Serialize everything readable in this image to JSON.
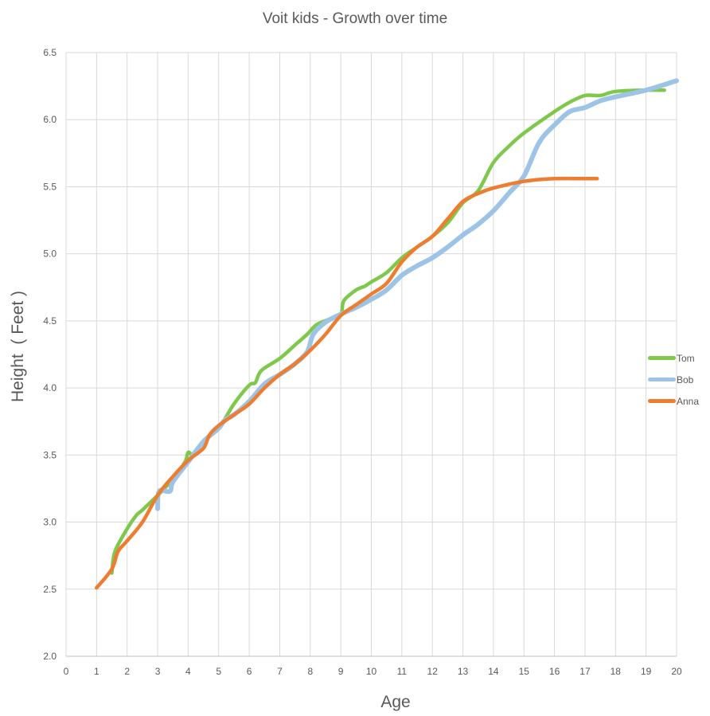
{
  "chart_data": {
    "type": "line",
    "title": "Voit kids - Growth over time",
    "xlabel": "Age",
    "ylabel": "Height  ( Feet )",
    "xlim": [
      0,
      20
    ],
    "ylim": [
      2.0,
      6.5
    ],
    "x_ticks": [
      "0",
      "1",
      "2",
      "3",
      "4",
      "5",
      "6",
      "7",
      "8",
      "9",
      "10",
      "11",
      "12",
      "13",
      "14",
      "15",
      "16",
      "17",
      "18",
      "19",
      "20"
    ],
    "y_ticks": [
      "2.0",
      "2.5",
      "3.0",
      "3.5",
      "4.0",
      "4.5",
      "5.0",
      "5.5",
      "6.0",
      "6.5"
    ],
    "grid": true,
    "legend_position": "right",
    "series": [
      {
        "name": "Tom",
        "color": "#7ec94c",
        "points": [
          [
            1.5,
            2.62
          ],
          [
            1.6,
            2.78
          ],
          [
            2.0,
            2.95
          ],
          [
            2.3,
            3.05
          ],
          [
            2.5,
            3.09
          ],
          [
            3.0,
            3.2
          ],
          [
            3.5,
            3.32
          ],
          [
            3.9,
            3.45
          ],
          [
            4.0,
            3.52
          ],
          [
            4.2,
            3.5
          ],
          [
            4.5,
            3.6
          ],
          [
            5.0,
            3.7
          ],
          [
            5.5,
            3.88
          ],
          [
            6.0,
            4.02
          ],
          [
            6.2,
            4.04
          ],
          [
            6.4,
            4.13
          ],
          [
            7.0,
            4.22
          ],
          [
            7.5,
            4.32
          ],
          [
            7.9,
            4.4
          ],
          [
            8.2,
            4.47
          ],
          [
            8.6,
            4.51
          ],
          [
            9.0,
            4.55
          ],
          [
            9.1,
            4.65
          ],
          [
            9.5,
            4.73
          ],
          [
            9.8,
            4.76
          ],
          [
            10.0,
            4.79
          ],
          [
            10.5,
            4.86
          ],
          [
            11.0,
            4.97
          ],
          [
            11.5,
            5.05
          ],
          [
            12.0,
            5.13
          ],
          [
            12.5,
            5.23
          ],
          [
            13.0,
            5.38
          ],
          [
            13.5,
            5.47
          ],
          [
            14.0,
            5.68
          ],
          [
            14.5,
            5.8
          ],
          [
            15.0,
            5.9
          ],
          [
            16.0,
            6.06
          ],
          [
            16.5,
            6.13
          ],
          [
            17.0,
            6.18
          ],
          [
            17.5,
            6.18
          ],
          [
            18.0,
            6.21
          ],
          [
            19.0,
            6.22
          ],
          [
            19.6,
            6.22
          ]
        ]
      },
      {
        "name": "Bob",
        "color": "#9dc3e6",
        "points": [
          [
            3.0,
            3.1
          ],
          [
            3.05,
            3.23
          ],
          [
            3.4,
            3.23
          ],
          [
            3.5,
            3.3
          ],
          [
            4.0,
            3.45
          ],
          [
            4.5,
            3.6
          ],
          [
            5.0,
            3.7
          ],
          [
            5.2,
            3.76
          ],
          [
            5.5,
            3.8
          ],
          [
            6.0,
            3.9
          ],
          [
            6.5,
            4.03
          ],
          [
            7.0,
            4.1
          ],
          [
            7.5,
            4.18
          ],
          [
            7.9,
            4.27
          ],
          [
            8.1,
            4.4
          ],
          [
            8.5,
            4.49
          ],
          [
            9.0,
            4.55
          ],
          [
            9.5,
            4.6
          ],
          [
            10.0,
            4.66
          ],
          [
            10.5,
            4.73
          ],
          [
            11.0,
            4.84
          ],
          [
            11.5,
            4.91
          ],
          [
            12.0,
            4.97
          ],
          [
            12.5,
            5.05
          ],
          [
            13.0,
            5.14
          ],
          [
            13.5,
            5.22
          ],
          [
            14.0,
            5.32
          ],
          [
            14.5,
            5.45
          ],
          [
            15.0,
            5.58
          ],
          [
            15.5,
            5.83
          ],
          [
            16.0,
            5.96
          ],
          [
            16.5,
            6.06
          ],
          [
            17.0,
            6.09
          ],
          [
            17.5,
            6.14
          ],
          [
            18.0,
            6.17
          ],
          [
            19.0,
            6.22
          ],
          [
            20.0,
            6.29
          ]
        ]
      },
      {
        "name": "Anna",
        "color": "#ed7d31",
        "points": [
          [
            1.0,
            2.51
          ],
          [
            1.5,
            2.65
          ],
          [
            1.7,
            2.78
          ],
          [
            2.0,
            2.86
          ],
          [
            2.5,
            3.0
          ],
          [
            3.0,
            3.2
          ],
          [
            3.5,
            3.34
          ],
          [
            4.0,
            3.46
          ],
          [
            4.5,
            3.55
          ],
          [
            4.7,
            3.65
          ],
          [
            5.0,
            3.72
          ],
          [
            5.5,
            3.8
          ],
          [
            6.0,
            3.88
          ],
          [
            6.5,
            4.0
          ],
          [
            7.0,
            4.1
          ],
          [
            7.5,
            4.18
          ],
          [
            8.0,
            4.28
          ],
          [
            8.5,
            4.4
          ],
          [
            9.0,
            4.54
          ],
          [
            9.5,
            4.62
          ],
          [
            10.0,
            4.7
          ],
          [
            10.5,
            4.78
          ],
          [
            11.0,
            4.94
          ],
          [
            11.5,
            5.05
          ],
          [
            12.0,
            5.13
          ],
          [
            12.5,
            5.26
          ],
          [
            13.0,
            5.39
          ],
          [
            13.5,
            5.45
          ],
          [
            14.0,
            5.49
          ],
          [
            15.0,
            5.54
          ],
          [
            16.0,
            5.56
          ],
          [
            17.0,
            5.56
          ],
          [
            17.4,
            5.56
          ]
        ]
      }
    ]
  },
  "legend": {
    "items": [
      {
        "label": "Tom",
        "color": "#7ec94c"
      },
      {
        "label": "Bob",
        "color": "#9dc3e6"
      },
      {
        "label": "Anna",
        "color": "#ed7d31"
      }
    ]
  }
}
